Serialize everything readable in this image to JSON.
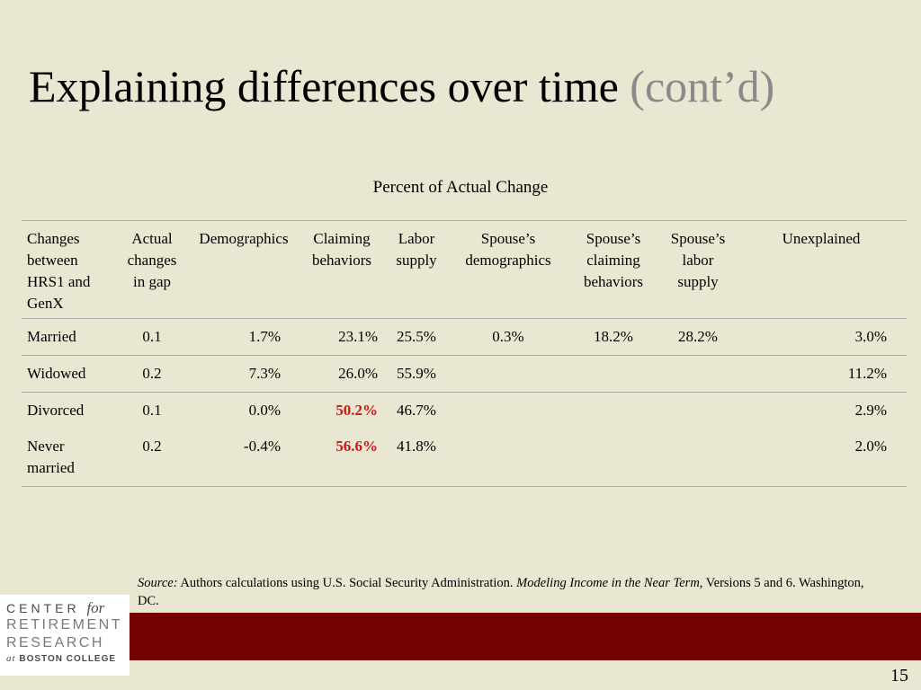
{
  "title": {
    "main": "Explaining differences over time",
    "suffix": "(cont’d)"
  },
  "table": {
    "caption": "Percent of Actual Change",
    "headers": [
      "Changes between HRS1 and GenX",
      "Actual changes in gap",
      "Demographics",
      "Claiming behaviors",
      "Labor supply",
      "Spouse’s demographics",
      "Spouse’s claiming behaviors",
      "Spouse’s labor supply",
      "Unexplained"
    ],
    "rows": [
      {
        "label": "Married",
        "gap": "0.1",
        "demographics": "1.7%",
        "claiming": "23.1%",
        "labor": "25.5%",
        "sp_demographics": "0.3%",
        "sp_claiming": "18.2%",
        "sp_labor": "28.2%",
        "unexplained": "3.0%"
      },
      {
        "label": "Widowed",
        "gap": "0.2",
        "demographics": "7.3%",
        "claiming": "26.0%",
        "labor": "55.9%",
        "sp_demographics": "",
        "sp_claiming": "",
        "sp_labor": "",
        "unexplained": "11.2%"
      },
      {
        "label": "Divorced",
        "gap": "0.1",
        "demographics": "0.0%",
        "claiming": "50.2%",
        "labor": "46.7%",
        "sp_demographics": "",
        "sp_claiming": "",
        "sp_labor": "",
        "unexplained": "2.9%"
      },
      {
        "label": "Never married",
        "gap": "0.2",
        "demographics": "-0.4%",
        "claiming": "56.6%",
        "labor": "41.8%",
        "sp_demographics": "",
        "sp_claiming": "",
        "sp_labor": "",
        "unexplained": "2.0%"
      }
    ],
    "highlight_color": "#d01717"
  },
  "source": {
    "label": "Source:",
    "text1": " Authors calculations using U.S. Social Security Administration. ",
    "publication": "Modeling Income in the Near Term",
    "text2": ", Versions 5 and 6. Washington, DC."
  },
  "logo": {
    "line1": "CENTER",
    "line1_for": "for",
    "line2": "RETIREMENT",
    "line3": "RESEARCH",
    "line4_at": "at",
    "line4": "BOSTON COLLEGE"
  },
  "page_number": "15",
  "colors": {
    "background": "#e9e6d1",
    "band": "#750000",
    "title_suffix": "#8a8a8a"
  }
}
